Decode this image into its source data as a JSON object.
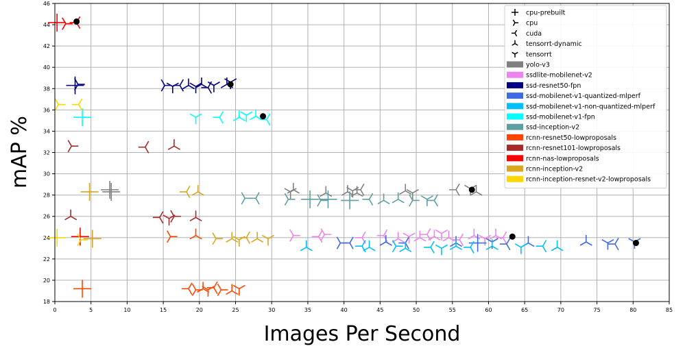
{
  "chart_data": {
    "type": "scatter",
    "title": "",
    "xlabel": "Images Per Second",
    "ylabel": "mAP %",
    "xlim": [
      0,
      85
    ],
    "ylim": [
      18,
      46
    ],
    "xticks": [
      0,
      5,
      10,
      15,
      20,
      25,
      30,
      35,
      40,
      45,
      50,
      55,
      60,
      65,
      70,
      75,
      80,
      85
    ],
    "yticks": [
      18,
      20,
      22,
      24,
      26,
      28,
      30,
      32,
      34,
      36,
      38,
      40,
      42,
      44,
      46
    ],
    "grid": true,
    "legend_position": "top-right",
    "marker_legend": [
      {
        "label": "cpu-prebuilt",
        "marker": "plus"
      },
      {
        "label": "cpu",
        "marker": "tri-right"
      },
      {
        "label": "cuda",
        "marker": "tri-left"
      },
      {
        "label": "tensorrt-dynamic",
        "marker": "tri-up"
      },
      {
        "label": "tensorrt",
        "marker": "tri-down"
      }
    ],
    "series": [
      {
        "name": "yolo-v3",
        "color": "#808080",
        "points": [
          {
            "x": 7.6,
            "y": 28.5,
            "m": "plus"
          },
          {
            "x": 7.8,
            "y": 28.3,
            "m": "plus"
          },
          {
            "x": 33,
            "y": 28.5,
            "m": "tri-up"
          },
          {
            "x": 32.6,
            "y": 28.3,
            "m": "tri-down"
          },
          {
            "x": 37.5,
            "y": 28.2,
            "m": "tri-up"
          },
          {
            "x": 40.5,
            "y": 28.3,
            "m": "tri-up"
          },
          {
            "x": 41.2,
            "y": 28.4,
            "m": "tri-down"
          },
          {
            "x": 41.8,
            "y": 28.2,
            "m": "tri-up"
          },
          {
            "x": 42.3,
            "y": 28.5,
            "m": "tri-left"
          },
          {
            "x": 48.5,
            "y": 28.4,
            "m": "tri-up"
          },
          {
            "x": 49.5,
            "y": 28.2,
            "m": "tri-down"
          },
          {
            "x": 55.5,
            "y": 28.5,
            "m": "tri-left"
          },
          {
            "x": 57.5,
            "y": 28.6,
            "m": "tri-down"
          },
          {
            "x": 58.3,
            "y": 28.3,
            "m": "tri-up"
          }
        ]
      },
      {
        "name": "ssdlite-mobilenet-v2",
        "color": "#ee82ee",
        "points": [
          {
            "x": 33,
            "y": 24.2,
            "m": "tri-right"
          },
          {
            "x": 36.5,
            "y": 24.1,
            "m": "tri-left"
          },
          {
            "x": 37.3,
            "y": 24.3,
            "m": "tri-right"
          },
          {
            "x": 42.5,
            "y": 24.0,
            "m": "tri-left"
          },
          {
            "x": 45.5,
            "y": 24.2,
            "m": "tri-left"
          },
          {
            "x": 47.5,
            "y": 23.9,
            "m": "tri-up"
          },
          {
            "x": 49,
            "y": 24.1,
            "m": "tri-down"
          },
          {
            "x": 50.5,
            "y": 24.0,
            "m": "tri-up"
          },
          {
            "x": 51.5,
            "y": 24.3,
            "m": "tri-left"
          },
          {
            "x": 52.5,
            "y": 24.1,
            "m": "tri-up"
          },
          {
            "x": 53.5,
            "y": 24.4,
            "m": "tri-down"
          },
          {
            "x": 54.5,
            "y": 24.0,
            "m": "tri-up"
          },
          {
            "x": 56,
            "y": 23.8,
            "m": "tri-left"
          },
          {
            "x": 58,
            "y": 24.2,
            "m": "tri-up"
          },
          {
            "x": 59.5,
            "y": 23.9,
            "m": "tri-down"
          },
          {
            "x": 61,
            "y": 24.2,
            "m": "tri-up"
          },
          {
            "x": 62,
            "y": 24.0,
            "m": "tri-left"
          }
        ]
      },
      {
        "name": "ssd-resnet50-fpn",
        "color": "#000080",
        "points": [
          {
            "x": 2.8,
            "y": 38.3,
            "m": "plus"
          },
          {
            "x": 3.2,
            "y": 38.4,
            "m": "tri-right"
          },
          {
            "x": 15.2,
            "y": 38.3,
            "m": "tri-right"
          },
          {
            "x": 16.3,
            "y": 38.2,
            "m": "tri-down"
          },
          {
            "x": 17.3,
            "y": 38.3,
            "m": "tri-left"
          },
          {
            "x": 18.5,
            "y": 38.3,
            "m": "tri-up"
          },
          {
            "x": 19.5,
            "y": 38.2,
            "m": "tri-down"
          },
          {
            "x": 20.3,
            "y": 38.4,
            "m": "tri-up"
          },
          {
            "x": 21.2,
            "y": 38.1,
            "m": "tri-left"
          },
          {
            "x": 22,
            "y": 38.3,
            "m": "tri-down"
          },
          {
            "x": 23.8,
            "y": 38.4,
            "m": "tri-up"
          },
          {
            "x": 24.3,
            "y": 38.6,
            "m": "tri-down"
          }
        ]
      },
      {
        "name": "ssd-mobilenet-v1-quantized-mlperf",
        "color": "#4169e1",
        "points": [
          {
            "x": 39.5,
            "y": 23.5,
            "m": "tri-right"
          },
          {
            "x": 40.8,
            "y": 23.5,
            "m": "tri-left"
          },
          {
            "x": 45.8,
            "y": 23.6,
            "m": "tri-up"
          },
          {
            "x": 48.5,
            "y": 23.5,
            "m": "tri-left"
          },
          {
            "x": 55.5,
            "y": 23.5,
            "m": "tri-up"
          },
          {
            "x": 58.5,
            "y": 23.5,
            "m": "plus"
          },
          {
            "x": 60.5,
            "y": 23.6,
            "m": "tri-down"
          },
          {
            "x": 62.5,
            "y": 23.4,
            "m": "tri-left"
          },
          {
            "x": 65.5,
            "y": 23.5,
            "m": "tri-up"
          },
          {
            "x": 73.5,
            "y": 23.6,
            "m": "tri-up"
          },
          {
            "x": 76.5,
            "y": 23.5,
            "m": "tri-down"
          },
          {
            "x": 77.5,
            "y": 23.4,
            "m": "tri-left"
          },
          {
            "x": 80.2,
            "y": 23.6,
            "m": "tri-down"
          }
        ]
      },
      {
        "name": "ssd-mobilenet-v1-non-quantized-mlperf",
        "color": "#00bfff",
        "points": [
          {
            "x": 34.8,
            "y": 23.1,
            "m": "tri-up"
          },
          {
            "x": 42.5,
            "y": 23.2,
            "m": "tri-left"
          },
          {
            "x": 43.5,
            "y": 23.1,
            "m": "tri-up"
          },
          {
            "x": 47.2,
            "y": 23.2,
            "m": "tri-right"
          },
          {
            "x": 48.5,
            "y": 23.0,
            "m": "tri-up"
          },
          {
            "x": 52,
            "y": 23.1,
            "m": "tri-left"
          },
          {
            "x": 53.5,
            "y": 23.0,
            "m": "tri-down"
          },
          {
            "x": 55.5,
            "y": 23.2,
            "m": "tri-up"
          },
          {
            "x": 57.5,
            "y": 23.1,
            "m": "tri-left"
          },
          {
            "x": 60.5,
            "y": 23.2,
            "m": "tri-up"
          },
          {
            "x": 64.5,
            "y": 23.1,
            "m": "tri-down"
          },
          {
            "x": 67.5,
            "y": 23.2,
            "m": "tri-left"
          },
          {
            "x": 69.5,
            "y": 23.1,
            "m": "tri-up"
          }
        ]
      },
      {
        "name": "ssd-mobilenet-v1-fpn",
        "color": "#00ffff",
        "points": [
          {
            "x": 3.8,
            "y": 35.3,
            "m": "plus"
          },
          {
            "x": 19.5,
            "y": 35.3,
            "m": "tri-down"
          },
          {
            "x": 22.8,
            "y": 35.3,
            "m": "tri-left"
          },
          {
            "x": 25.5,
            "y": 35.3,
            "m": "tri-up"
          },
          {
            "x": 26.5,
            "y": 35.5,
            "m": "tri-down"
          },
          {
            "x": 27.8,
            "y": 35.4,
            "m": "tri-up"
          },
          {
            "x": 29.3,
            "y": 35.1,
            "m": "tri-left"
          }
        ]
      },
      {
        "name": "ssd-inception-v2",
        "color": "#5f9ea0",
        "points": [
          {
            "x": 26.3,
            "y": 27.7,
            "m": "tri-right"
          },
          {
            "x": 27.8,
            "y": 27.7,
            "m": "tri-left"
          },
          {
            "x": 32.3,
            "y": 27.6,
            "m": "tri-right"
          },
          {
            "x": 35.3,
            "y": 27.6,
            "m": "plus"
          },
          {
            "x": 36.8,
            "y": 27.5,
            "m": "tri-right"
          },
          {
            "x": 37.8,
            "y": 27.6,
            "m": "plus"
          },
          {
            "x": 40.8,
            "y": 27.5,
            "m": "plus"
          },
          {
            "x": 43.5,
            "y": 27.6,
            "m": "tri-left"
          },
          {
            "x": 45.5,
            "y": 27.5,
            "m": "tri-up"
          },
          {
            "x": 47.5,
            "y": 27.6,
            "m": "tri-up"
          },
          {
            "x": 49.5,
            "y": 27.5,
            "m": "tri-right"
          },
          {
            "x": 51.5,
            "y": 27.6,
            "m": "tri-down"
          },
          {
            "x": 52.5,
            "y": 27.5,
            "m": "tri-left"
          }
        ]
      },
      {
        "name": "rcnn-resnet50-lowproposals",
        "color": "#ff4500",
        "points": [
          {
            "x": 3.8,
            "y": 19.2,
            "m": "plus"
          },
          {
            "x": 16.0,
            "y": 24.1,
            "m": "tri-right"
          },
          {
            "x": 19.5,
            "y": 24.2,
            "m": "tri-up"
          },
          {
            "x": 18.5,
            "y": 19.2,
            "m": "tri-left"
          },
          {
            "x": 19.5,
            "y": 19.1,
            "m": "tri-right"
          },
          {
            "x": 20.5,
            "y": 19.2,
            "m": "tri-up"
          },
          {
            "x": 21.2,
            "y": 19.1,
            "m": "tri-down"
          },
          {
            "x": 22,
            "y": 19.3,
            "m": "tri-left"
          },
          {
            "x": 23,
            "y": 19.1,
            "m": "tri-right"
          },
          {
            "x": 24.5,
            "y": 19.0,
            "m": "tri-up"
          },
          {
            "x": 25.5,
            "y": 19.2,
            "m": "tri-down"
          }
        ]
      },
      {
        "name": "rcnn-resnet101-lowproposals",
        "color": "#a52a2a",
        "points": [
          {
            "x": 2.3,
            "y": 32.6,
            "m": "tri-right"
          },
          {
            "x": 2.2,
            "y": 26.0,
            "m": "tri-up"
          },
          {
            "x": 12.5,
            "y": 32.5,
            "m": "tri-left"
          },
          {
            "x": 16.5,
            "y": 32.6,
            "m": "tri-up"
          },
          {
            "x": 14.5,
            "y": 25.9,
            "m": "tri-left"
          },
          {
            "x": 15.8,
            "y": 25.8,
            "m": "tri-down"
          },
          {
            "x": 16.5,
            "y": 26.0,
            "m": "tri-right"
          },
          {
            "x": 19.5,
            "y": 25.9,
            "m": "tri-up"
          }
        ]
      },
      {
        "name": "rcnn-nas-lowproposals",
        "color": "#ff0000",
        "points": [
          {
            "x": 0.3,
            "y": 44.2,
            "m": "plus"
          },
          {
            "x": 1.5,
            "y": 44.1,
            "m": "tri-right"
          },
          {
            "x": 3.0,
            "y": 44.2,
            "m": "tri-left"
          },
          {
            "x": 3.5,
            "y": 24.1,
            "m": "plus"
          }
        ]
      },
      {
        "name": "rcnn-inception-v2",
        "color": "#daa520",
        "points": [
          {
            "x": 4.8,
            "y": 28.3,
            "m": "plus"
          },
          {
            "x": 5.2,
            "y": 23.9,
            "m": "plus"
          },
          {
            "x": 18.2,
            "y": 28.3,
            "m": "tri-left"
          },
          {
            "x": 19.8,
            "y": 28.3,
            "m": "tri-up"
          },
          {
            "x": 22.3,
            "y": 23.9,
            "m": "tri-right"
          },
          {
            "x": 24.5,
            "y": 23.9,
            "m": "tri-up"
          },
          {
            "x": 25.5,
            "y": 23.8,
            "m": "tri-down"
          },
          {
            "x": 26.5,
            "y": 24.0,
            "m": "tri-left"
          },
          {
            "x": 28,
            "y": 23.9,
            "m": "tri-up"
          },
          {
            "x": 29.5,
            "y": 23.9,
            "m": "tri-down"
          }
        ]
      },
      {
        "name": "rcnn-inception-resnet-v2-lowproposals",
        "color": "#ffd700",
        "points": [
          {
            "x": 0.5,
            "y": 36.5,
            "m": "tri-right"
          },
          {
            "x": 3.3,
            "y": 36.5,
            "m": "tri-left"
          },
          {
            "x": 0.3,
            "y": 24.0,
            "m": "plus"
          },
          {
            "x": 3.6,
            "y": 23.8,
            "m": "tri-right"
          }
        ]
      }
    ],
    "highlight_points": [
      {
        "x": 3.0,
        "y": 44.3
      },
      {
        "x": 24.3,
        "y": 38.4
      },
      {
        "x": 28.8,
        "y": 35.4
      },
      {
        "x": 57.7,
        "y": 28.5
      },
      {
        "x": 63.3,
        "y": 24.1
      },
      {
        "x": 80.4,
        "y": 23.5
      }
    ]
  }
}
